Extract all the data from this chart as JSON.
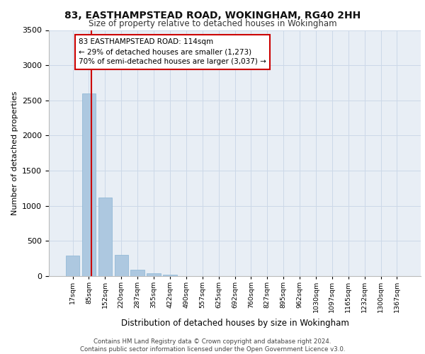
{
  "title1": "83, EASTHAMPSTEAD ROAD, WOKINGHAM, RG40 2HH",
  "title2": "Size of property relative to detached houses in Wokingham",
  "xlabel": "Distribution of detached houses by size in Wokingham",
  "ylabel": "Number of detached properties",
  "categories": [
    "17sqm",
    "85sqm",
    "152sqm",
    "220sqm",
    "287sqm",
    "355sqm",
    "422sqm",
    "490sqm",
    "557sqm",
    "625sqm",
    "692sqm",
    "760sqm",
    "827sqm",
    "895sqm",
    "962sqm",
    "1030sqm",
    "1097sqm",
    "1165sqm",
    "1232sqm",
    "1300sqm",
    "1367sqm"
  ],
  "values": [
    290,
    2600,
    1120,
    300,
    90,
    40,
    20,
    0,
    0,
    0,
    0,
    0,
    0,
    0,
    0,
    0,
    0,
    0,
    0,
    0,
    0
  ],
  "bar_color": "#adc8e0",
  "bar_edge_color": "#88b4d4",
  "property_line_x": 1.15,
  "annotation_text": "83 EASTHAMPSTEAD ROAD: 114sqm\n← 29% of detached houses are smaller (1,273)\n70% of semi-detached houses are larger (3,037) →",
  "annotation_box_color": "#ffffff",
  "annotation_box_edge_color": "#cc0000",
  "vline_color": "#cc0000",
  "grid_color": "#ccd8e8",
  "background_color": "#e8eef5",
  "footer_text": "Contains HM Land Registry data © Crown copyright and database right 2024.\nContains public sector information licensed under the Open Government Licence v3.0.",
  "ylim": [
    0,
    3500
  ],
  "yticks": [
    0,
    500,
    1000,
    1500,
    2000,
    2500,
    3000,
    3500
  ]
}
